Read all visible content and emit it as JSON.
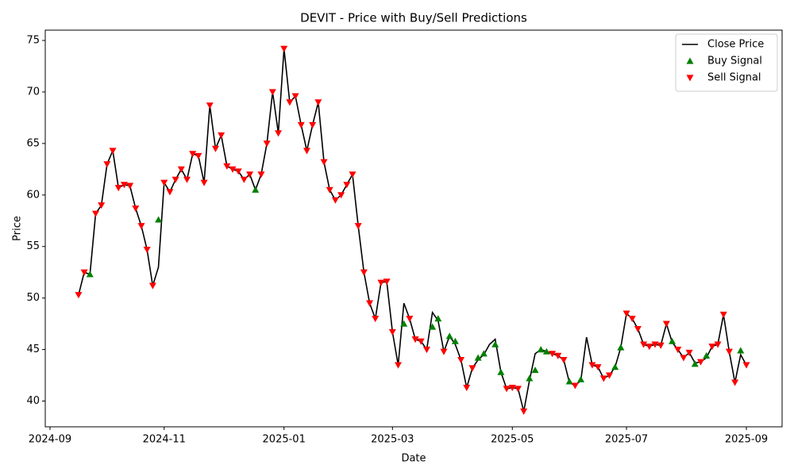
{
  "chart_data": {
    "type": "line",
    "title": "DEVIT - Price with Buy/Sell Predictions",
    "x_label": "Date",
    "y_label": "Price",
    "categories": [
      "2024-09",
      null,
      null,
      null,
      null,
      null,
      null,
      null,
      null,
      null,
      null,
      null,
      null,
      null,
      null,
      null,
      null,
      null,
      null,
      null,
      "2024-11",
      null,
      null,
      null,
      null,
      null,
      null,
      null,
      null,
      null,
      null,
      null,
      null,
      null,
      null,
      null,
      null,
      null,
      null,
      null,
      null,
      "2025-01",
      null,
      null,
      null,
      null,
      null,
      null,
      null,
      null,
      null,
      null,
      null,
      null,
      null,
      null,
      null,
      null,
      null,
      null,
      "2025-03",
      null,
      null,
      null,
      null,
      null,
      null,
      null,
      null,
      null,
      null,
      null,
      null,
      null,
      null,
      null,
      null,
      null,
      null,
      null,
      null,
      "2025-05",
      null,
      null,
      null,
      null,
      null,
      null,
      null,
      null,
      null,
      null,
      null,
      null,
      null,
      null,
      null,
      null,
      null,
      null,
      null,
      "2025-07",
      null,
      null,
      null,
      null,
      null,
      null,
      null,
      null,
      null,
      null,
      null,
      null,
      null,
      null,
      null,
      null,
      null,
      null,
      null,
      null,
      "2025-09"
    ],
    "series": [
      {
        "name": "Close Price",
        "color": "#000000",
        "marker": "none",
        "values": [
          null,
          null,
          null,
          null,
          null,
          50.3,
          52.5,
          52.3,
          58.2,
          59,
          63,
          64.3,
          60.7,
          61,
          60.9,
          58.7,
          57,
          54.7,
          51.2,
          53,
          61.2,
          60.3,
          61.5,
          62.5,
          61.5,
          64,
          63.8,
          61.2,
          68.7,
          64.5,
          65.8,
          62.8,
          62.5,
          62.3,
          61.5,
          62,
          60.5,
          62,
          65,
          70,
          66,
          74.2,
          69,
          69.6,
          66.8,
          64.3,
          66.8,
          69,
          63.2,
          60.5,
          59.5,
          60,
          61,
          62,
          57,
          52.5,
          49.5,
          48,
          51.5,
          51.6,
          46.7,
          43.5,
          49.5,
          48,
          46,
          45.8,
          45,
          48.6,
          47.8,
          44.8,
          46.3,
          45.5,
          44,
          41.3,
          43.2,
          44,
          44.5,
          45.5,
          46,
          42.8,
          41.2,
          41.3,
          41.2,
          39,
          42,
          44.6,
          45,
          44.8,
          44.6,
          44.4,
          44,
          41.8,
          41.5,
          42,
          46.2,
          43.5,
          43.3,
          42.2,
          42.5,
          43.3,
          45.2,
          48.5,
          48,
          47,
          45.5,
          45.3,
          45.5,
          45.4,
          47.5,
          45.7,
          45,
          44.2,
          44.7,
          43.7,
          43.8,
          44.2,
          45.3,
          45.5,
          48.4,
          44.8,
          41.8,
          44.5,
          43.5
        ]
      },
      {
        "name": "Buy Signal",
        "color": "#008000",
        "marker": "triangle-up",
        "values": [
          null,
          null,
          null,
          null,
          null,
          null,
          null,
          52.3,
          null,
          null,
          null,
          null,
          null,
          null,
          null,
          null,
          null,
          null,
          null,
          57.6,
          null,
          null,
          null,
          null,
          null,
          null,
          null,
          null,
          null,
          null,
          null,
          null,
          null,
          null,
          null,
          null,
          60.5,
          null,
          null,
          null,
          null,
          null,
          null,
          null,
          null,
          null,
          null,
          null,
          null,
          null,
          null,
          null,
          null,
          null,
          null,
          null,
          null,
          null,
          null,
          null,
          null,
          null,
          47.5,
          null,
          null,
          null,
          null,
          47.2,
          48,
          null,
          46.3,
          45.8,
          null,
          null,
          null,
          44.2,
          44.6,
          null,
          45.5,
          42.8,
          null,
          null,
          null,
          null,
          42.2,
          43,
          45,
          44.8,
          null,
          null,
          null,
          41.9,
          null,
          42.1,
          null,
          null,
          null,
          null,
          null,
          43.3,
          45.2,
          null,
          null,
          null,
          null,
          null,
          null,
          null,
          null,
          45.8,
          null,
          null,
          null,
          43.6,
          null,
          44.4,
          null,
          null,
          null,
          null,
          null,
          44.9,
          null
        ]
      },
      {
        "name": "Sell Signal",
        "color": "#ff0000",
        "marker": "triangle-down",
        "values": [
          null,
          null,
          null,
          null,
          null,
          50.3,
          52.5,
          null,
          58.2,
          59,
          63,
          64.3,
          60.7,
          61,
          60.9,
          58.7,
          57,
          54.7,
          51.2,
          null,
          61.2,
          60.3,
          61.5,
          62.5,
          61.5,
          64,
          63.8,
          61.2,
          68.7,
          64.5,
          65.8,
          62.8,
          62.5,
          62.3,
          61.5,
          62,
          null,
          62,
          65,
          70,
          66,
          74.2,
          69,
          69.6,
          66.8,
          64.3,
          66.8,
          69,
          63.2,
          60.5,
          59.5,
          60,
          61,
          62,
          57,
          52.5,
          49.5,
          48,
          51.5,
          51.6,
          46.7,
          43.5,
          null,
          48,
          46,
          45.8,
          45,
          null,
          null,
          44.8,
          null,
          null,
          44,
          41.3,
          43.2,
          null,
          null,
          null,
          null,
          null,
          41.2,
          41.3,
          41.2,
          39,
          null,
          null,
          null,
          null,
          44.6,
          44.4,
          44,
          null,
          41.5,
          null,
          null,
          43.5,
          43.3,
          42.2,
          42.5,
          null,
          null,
          48.5,
          48,
          47,
          45.5,
          45.3,
          45.5,
          45.4,
          47.5,
          null,
          45,
          44.2,
          44.7,
          null,
          43.8,
          null,
          45.3,
          45.5,
          48.4,
          44.8,
          41.8,
          null,
          43.5
        ]
      }
    ],
    "ylim": [
      37.5,
      76
    ],
    "yticks": [
      40,
      45,
      50,
      55,
      60,
      65,
      70,
      75
    ],
    "grid": false,
    "legend": "upper right"
  }
}
